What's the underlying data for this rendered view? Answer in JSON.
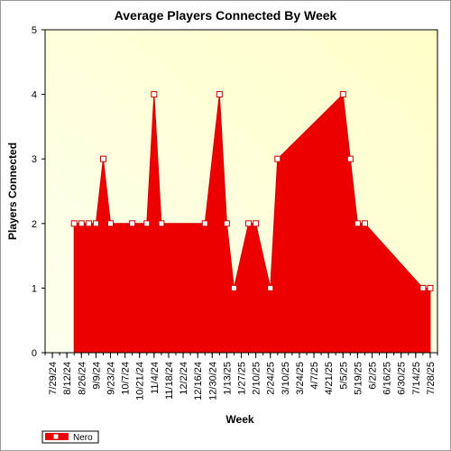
{
  "chart_data": {
    "type": "area",
    "title": "Average Players Connected By Week",
    "xlabel": "Week",
    "ylabel": "Players Connected",
    "ylim": [
      0,
      5
    ],
    "yticks": [
      "0",
      "1",
      "2",
      "3",
      "4",
      "5"
    ],
    "x_tick_labels": [
      "7/29/24",
      "8/12/24",
      "8/26/24",
      "9/9/24",
      "9/23/24",
      "10/7/24",
      "10/21/24",
      "11/4/24",
      "11/18/24",
      "12/2/24",
      "12/16/24",
      "12/30/24",
      "1/13/25",
      "1/27/25",
      "2/10/25",
      "2/24/25",
      "3/10/25",
      "3/24/25",
      "4/7/25",
      "4/21/25",
      "5/5/25",
      "5/19/25",
      "6/2/25",
      "6/16/25",
      "6/30/25",
      "7/14/25",
      "7/28/25"
    ],
    "x_range": [
      "2024-07-22",
      "2025-08-04"
    ],
    "grid": false,
    "legend_position": "bottom-left",
    "series": [
      {
        "name": "Nero",
        "color": "#ee0000",
        "points": [
          {
            "x": "2024-08-19",
            "y": 2
          },
          {
            "x": "2024-08-26",
            "y": 2
          },
          {
            "x": "2024-09-02",
            "y": 2
          },
          {
            "x": "2024-09-09",
            "y": 2
          },
          {
            "x": "2024-09-16",
            "y": 3
          },
          {
            "x": "2024-09-23",
            "y": 2
          },
          {
            "x": "2024-10-14",
            "y": 2
          },
          {
            "x": "2024-10-28",
            "y": 2
          },
          {
            "x": "2024-11-04",
            "y": 4
          },
          {
            "x": "2024-11-11",
            "y": 2
          },
          {
            "x": "2024-12-23",
            "y": 2
          },
          {
            "x": "2025-01-06",
            "y": 4
          },
          {
            "x": "2025-01-13",
            "y": 2
          },
          {
            "x": "2025-01-20",
            "y": 1
          },
          {
            "x": "2025-02-03",
            "y": 2
          },
          {
            "x": "2025-02-10",
            "y": 2
          },
          {
            "x": "2025-02-24",
            "y": 1
          },
          {
            "x": "2025-03-03",
            "y": 3
          },
          {
            "x": "2025-05-05",
            "y": 4
          },
          {
            "x": "2025-05-12",
            "y": 3
          },
          {
            "x": "2025-05-19",
            "y": 2
          },
          {
            "x": "2025-05-26",
            "y": 2
          },
          {
            "x": "2025-07-21",
            "y": 1
          },
          {
            "x": "2025-07-28",
            "y": 1
          }
        ]
      }
    ]
  },
  "colors": {
    "plot_background_start": "#fffff0",
    "plot_background_end": "#ffffc8",
    "marker_fill": "#ffffff",
    "marker_stroke": "#cc0000"
  }
}
